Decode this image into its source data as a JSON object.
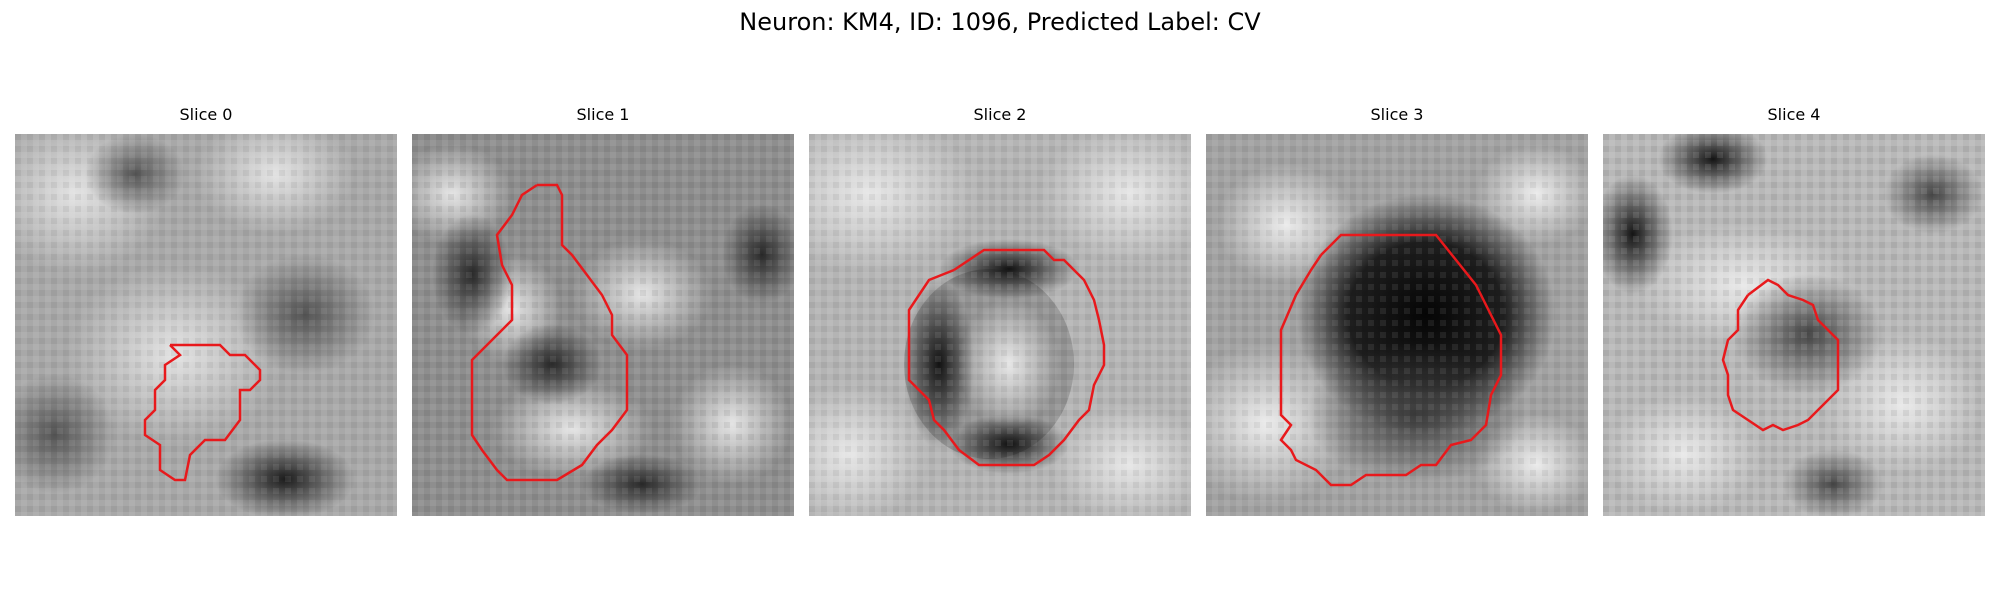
{
  "figure": {
    "title": "Neuron: KM4, ID: 1096, Predicted Label: CV"
  },
  "contour_color": "#e8191c",
  "panels": [
    {
      "title": "Slice 0",
      "contour_icon": "segmentation-outline-icon"
    },
    {
      "title": "Slice 1",
      "contour_icon": "segmentation-outline-icon"
    },
    {
      "title": "Slice 2",
      "contour_icon": "segmentation-outline-icon"
    },
    {
      "title": "Slice 3",
      "contour_icon": "segmentation-outline-icon"
    },
    {
      "title": "Slice 4",
      "contour_icon": "segmentation-outline-icon"
    }
  ]
}
